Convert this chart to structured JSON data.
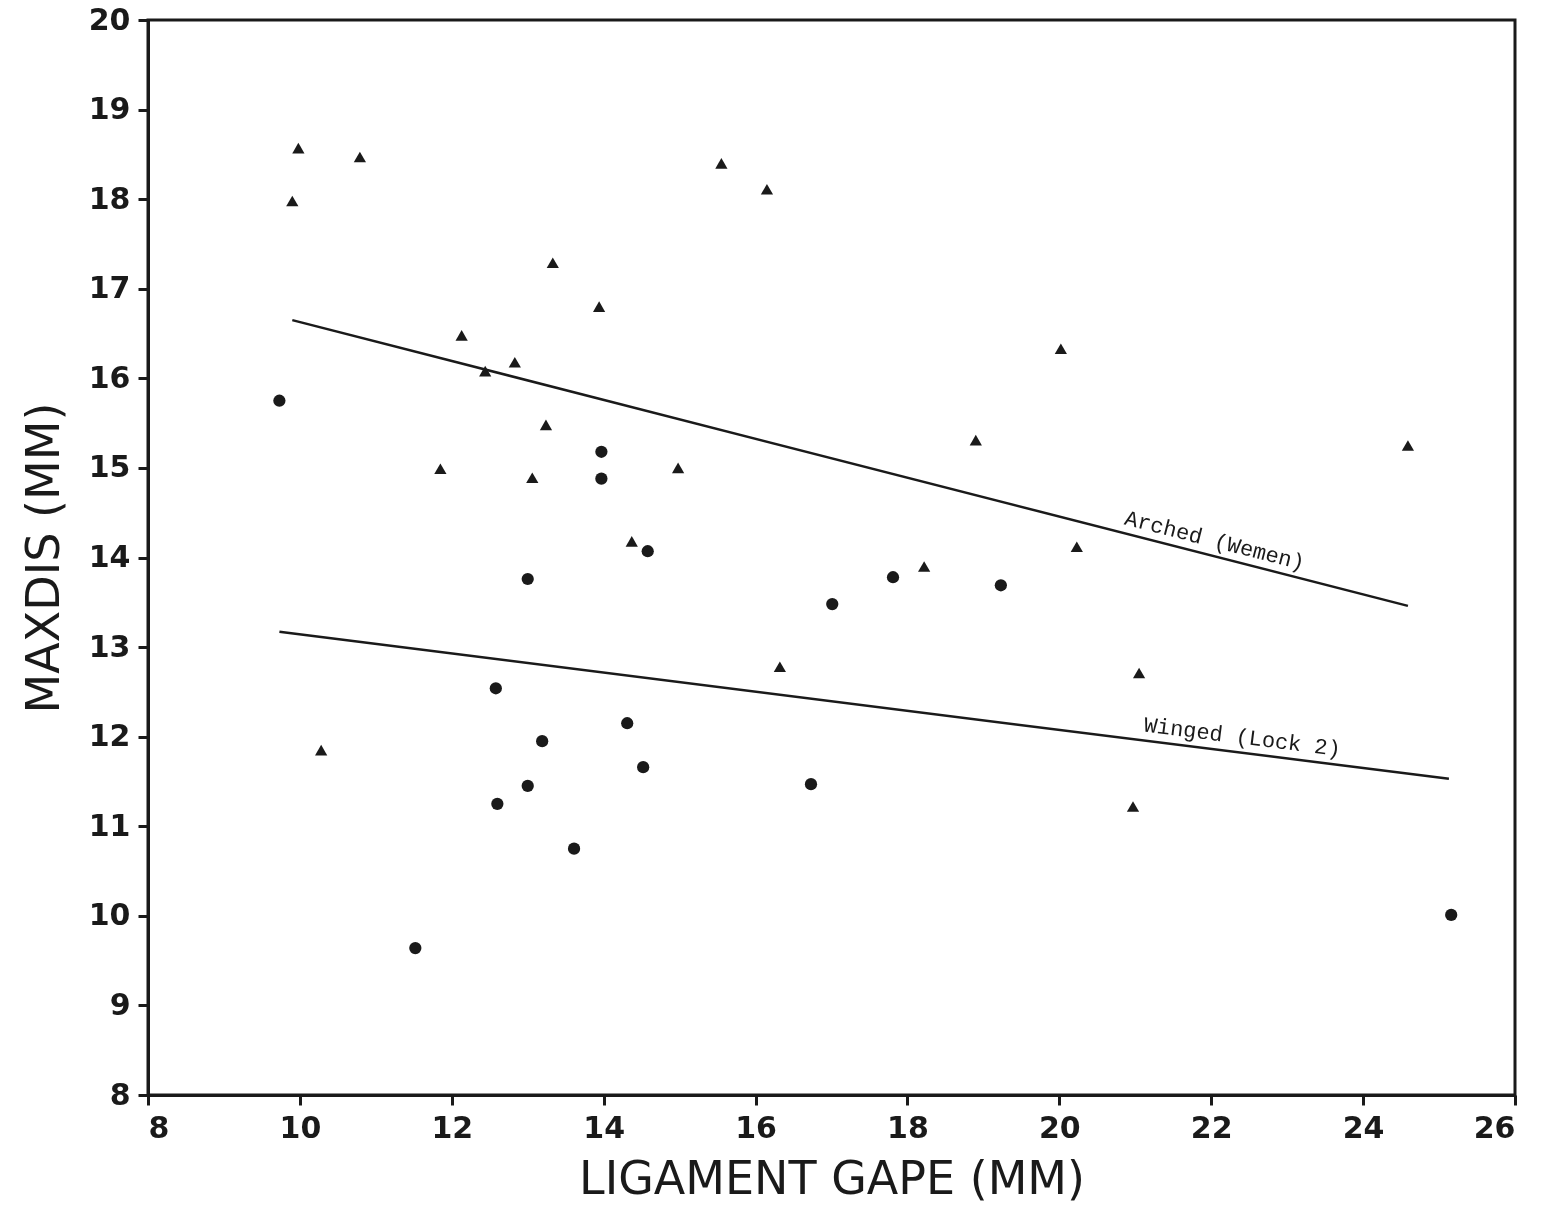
{
  "chart_data": {
    "type": "scatter",
    "xlabel": "LIGAMENT GAPE (MM)",
    "ylabel": "MAXDIS (MM)",
    "xlim": [
      8,
      26
    ],
    "ylim": [
      8,
      20
    ],
    "xticks": [
      8,
      10,
      12,
      14,
      16,
      18,
      20,
      22,
      24,
      26
    ],
    "yticks": [
      8,
      9,
      10,
      11,
      12,
      13,
      14,
      15,
      16,
      17,
      18,
      19,
      20
    ],
    "series": [
      {
        "marker": "triangle",
        "color": "#1a1a1a",
        "x": [
          9.98,
          9.9,
          10.79,
          15.55,
          16.15,
          13.33,
          13.94,
          12.13,
          12.83,
          12.44,
          20.02,
          13.24,
          11.85,
          13.06,
          14.98,
          18.9,
          24.59,
          14.37,
          18.22,
          20.23,
          16.32,
          21.05,
          10.28,
          20.97
        ],
        "values": [
          18.57,
          17.98,
          18.47,
          18.4,
          18.11,
          17.29,
          16.8,
          16.48,
          16.18,
          16.08,
          16.33,
          15.48,
          14.99,
          14.89,
          15.0,
          15.31,
          15.25,
          14.18,
          13.9,
          14.12,
          12.78,
          12.71,
          11.85,
          11.22
        ]
      },
      {
        "marker": "circle",
        "color": "#1a1a1a",
        "x": [
          9.73,
          13.97,
          13.97,
          14.58,
          13.0,
          17.81,
          19.23,
          17.01,
          12.58,
          14.31,
          13.19,
          14.52,
          13.0,
          16.73,
          12.6,
          13.61,
          11.52,
          25.16
        ],
        "values": [
          15.75,
          15.18,
          14.88,
          14.07,
          13.76,
          13.78,
          13.69,
          13.48,
          12.54,
          12.15,
          11.95,
          11.66,
          11.45,
          11.47,
          11.25,
          10.75,
          9.64,
          10.01
        ]
      },
      {
        "type": "line",
        "color": "#1a1a1a",
        "x": [
          9.9,
          24.59
        ],
        "values": [
          16.65,
          13.46
        ]
      },
      {
        "type": "line",
        "color": "#1a1a1a",
        "x": [
          9.73,
          25.13
        ],
        "values": [
          13.17,
          11.53
        ]
      }
    ],
    "annotations": [
      "Arched (Wemen)",
      "Winged (Lock 2)"
    ]
  }
}
